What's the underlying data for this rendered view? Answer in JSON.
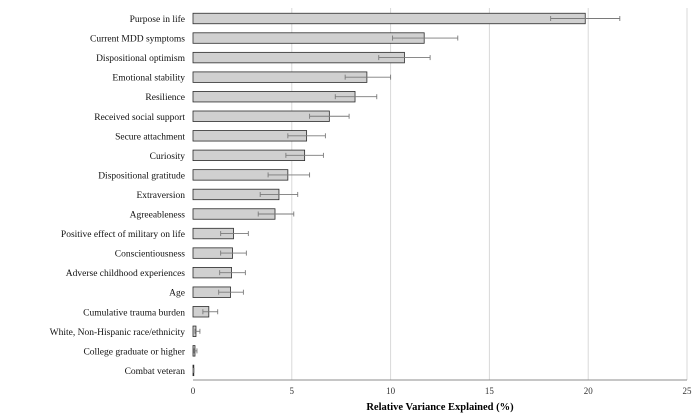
{
  "chart_data": {
    "type": "bar",
    "orientation": "horizontal",
    "categories": [
      "Purpose in life",
      "Current MDD symptoms",
      "Dispositional optimism",
      "Emotional stability",
      "Resilience",
      "Received social support",
      "Secure attachment",
      "Curiosity",
      "Dispositional gratitude",
      "Extraversion",
      "Agreeableness",
      "Positive effect of military on life",
      "Conscientiousness",
      "Adverse childhood experiences",
      "Age",
      "Cumulative trauma burden",
      "White, Non-Hispanic race/ethnicity",
      "College graduate or higher",
      "Combat veteran"
    ],
    "values": [
      19.85,
      11.7,
      10.7,
      8.8,
      8.2,
      6.9,
      5.75,
      5.65,
      4.8,
      4.35,
      4.15,
      2.05,
      2.0,
      1.95,
      1.9,
      0.8,
      0.15,
      0.1,
      0.02
    ],
    "error_low": [
      18.1,
      10.1,
      9.4,
      7.7,
      7.2,
      5.9,
      4.8,
      4.7,
      3.8,
      3.4,
      3.3,
      1.4,
      1.4,
      1.35,
      1.3,
      0.5,
      0.1,
      0.05,
      0.0
    ],
    "error_high": [
      21.6,
      13.4,
      12.0,
      10.0,
      9.3,
      7.9,
      6.7,
      6.6,
      5.9,
      5.3,
      5.1,
      2.8,
      2.7,
      2.65,
      2.55,
      1.25,
      0.35,
      0.2,
      0.05
    ],
    "x_ticks": [
      "0",
      "5",
      "10",
      "15",
      "20",
      "25"
    ],
    "xlim": [
      0,
      25
    ],
    "xlabel": "Relative Variance Explained (%)",
    "ylabel": "",
    "title": "",
    "grid": true,
    "colors": {
      "bar_fill": "#d0d0d0",
      "bar_stroke": "#2b2b2b",
      "error_bar": "#7a7a7a",
      "grid": "#d9d9d9"
    }
  }
}
